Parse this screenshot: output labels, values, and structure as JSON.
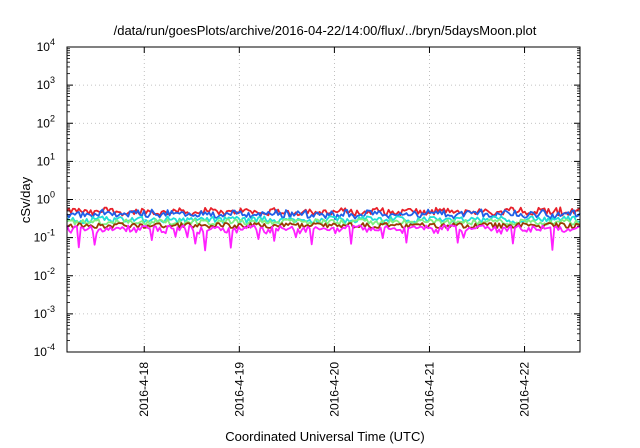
{
  "chart_data": {
    "type": "line",
    "title": "/data/run/goesPlots/archive/2016-04-22/14:00/flux/../bryn/5daysMoon.plot",
    "xlabel": "Coordinated Universal Time (UTC)",
    "ylabel": "cSv/day",
    "yscale": "log",
    "ylim_exponents": [
      -4,
      4
    ],
    "y_tick_labels": [
      {
        "base": "10",
        "exp": "-4"
      },
      {
        "base": "10",
        "exp": "-3"
      },
      {
        "base": "10",
        "exp": "-2"
      },
      {
        "base": "10",
        "exp": "-1"
      },
      {
        "base": "10",
        "exp": "0"
      },
      {
        "base": "10",
        "exp": "1"
      },
      {
        "base": "10",
        "exp": "2"
      },
      {
        "base": "10",
        "exp": "3"
      },
      {
        "base": "10",
        "exp": "4"
      }
    ],
    "xlim": [
      "2016-04-17 04:30",
      "2016-04-22 14:00"
    ],
    "x_ticks": [
      "2016-4-18",
      "2016-4-19",
      "2016-4-20",
      "2016-4-21",
      "2016-4-22"
    ],
    "grid": true,
    "legend": "none",
    "series": [
      {
        "color": "#e8202a",
        "approx_level": 0.48,
        "min": 0.38,
        "max": 0.62
      },
      {
        "color": "#1f5fe8",
        "approx_level": 0.42,
        "min": 0.3,
        "max": 0.55
      },
      {
        "color": "#20e0d8",
        "approx_level": 0.3,
        "min": 0.24,
        "max": 0.36
      },
      {
        "color": "#80f080",
        "approx_level": 0.26,
        "min": 0.22,
        "max": 0.3
      },
      {
        "color": "#9a3a00",
        "approx_level": 0.21,
        "min": 0.18,
        "max": 0.24
      },
      {
        "color": "#ff20ff",
        "approx_level": 0.17,
        "min": 0.045,
        "max": 0.21
      }
    ]
  }
}
